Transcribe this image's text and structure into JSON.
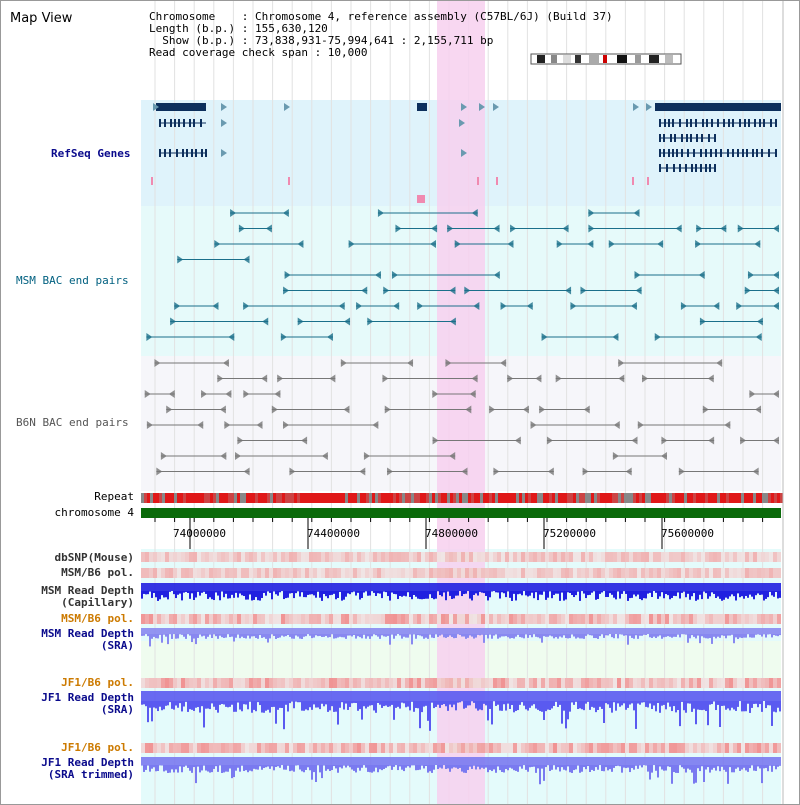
{
  "view_title": "Map View",
  "header": {
    "line1": "Chromosome    : Chromosome 4, reference assembly (C57BL/6J) (Build 37)",
    "line2": "Length (b.p.) : 155,630,120",
    "line3": "  Show (b.p.) : 73,838,931-75,994,641 : 2,155,711 bp",
    "line4": "Read coverage check span : 10,000"
  },
  "tracks": {
    "refseq": "RefSeq Genes",
    "msm_bac": "MSM BAC end pairs",
    "b6n_bac": "B6N BAC end pairs",
    "repeat": "Repeat",
    "chromosome": "chromosome 4",
    "dbsnp": "dbSNP(Mouse)",
    "msm_b6_pol_1": "MSM/B6 pol.",
    "msm_read_depth_cap_1": "MSM Read Depth",
    "msm_read_depth_cap_2": "(Capillary)",
    "msm_b6_pol_2": "MSM/B6 pol.",
    "msm_read_depth_sra_1": "MSM Read Depth",
    "msm_read_depth_sra_2": "(SRA)",
    "jf1_b6_pol_1": "JF1/B6 pol.",
    "jf1_read_depth_sra_1": "JF1 Read Depth",
    "jf1_read_depth_sra_2": "(SRA)",
    "jf1_b6_pol_2": "JF1/B6 pol.",
    "jf1_read_depth_trim_1": "JF1 Read Depth",
    "jf1_read_depth_trim_2": "(SRA trimmed)"
  },
  "axis_ticks": [
    "74000000",
    "74400000",
    "74800000",
    "75200000",
    "75600000"
  ],
  "colors": {
    "refseq_bg": "#dff3fb",
    "msm_bac_bg": "#e6fafa",
    "b6n_bac_bg": "#f6f6fa",
    "highlight": "#f7d0ee",
    "gene": "#0d2f5c",
    "msm_feature": "#1a6f8a",
    "b6n_feature": "#777777",
    "chromosome_bar": "#0a6a0a",
    "repeat_red": "#e01818",
    "depth_blue": "#2020e0",
    "depth_light": "#8888f0"
  }
}
